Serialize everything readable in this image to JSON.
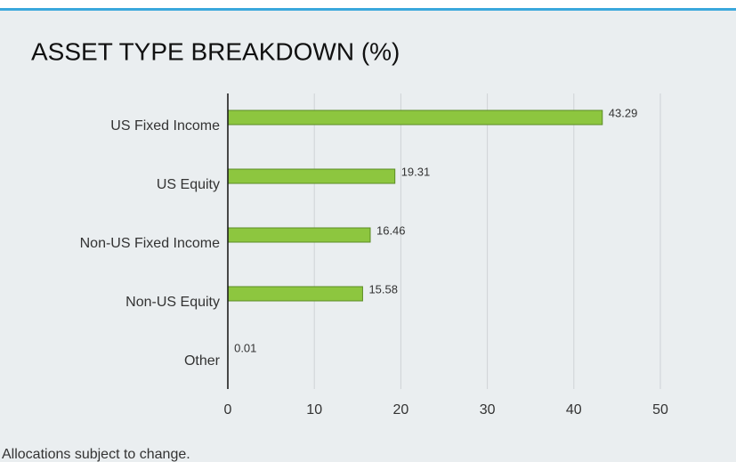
{
  "chart_data": {
    "type": "bar",
    "orientation": "horizontal",
    "title": "ASSET TYPE BREAKDOWN (%)",
    "categories": [
      "US Fixed Income",
      "US Equity",
      "Non-US Fixed Income",
      "Non-US Equity",
      "Other"
    ],
    "values": [
      43.29,
      19.31,
      16.46,
      15.58,
      0.01
    ],
    "color": "#8dc63f",
    "xlim": [
      0,
      55
    ],
    "xticks": [
      0,
      10,
      20,
      30,
      40,
      50
    ],
    "grid": true,
    "footnote": "Allocations subject to change."
  }
}
